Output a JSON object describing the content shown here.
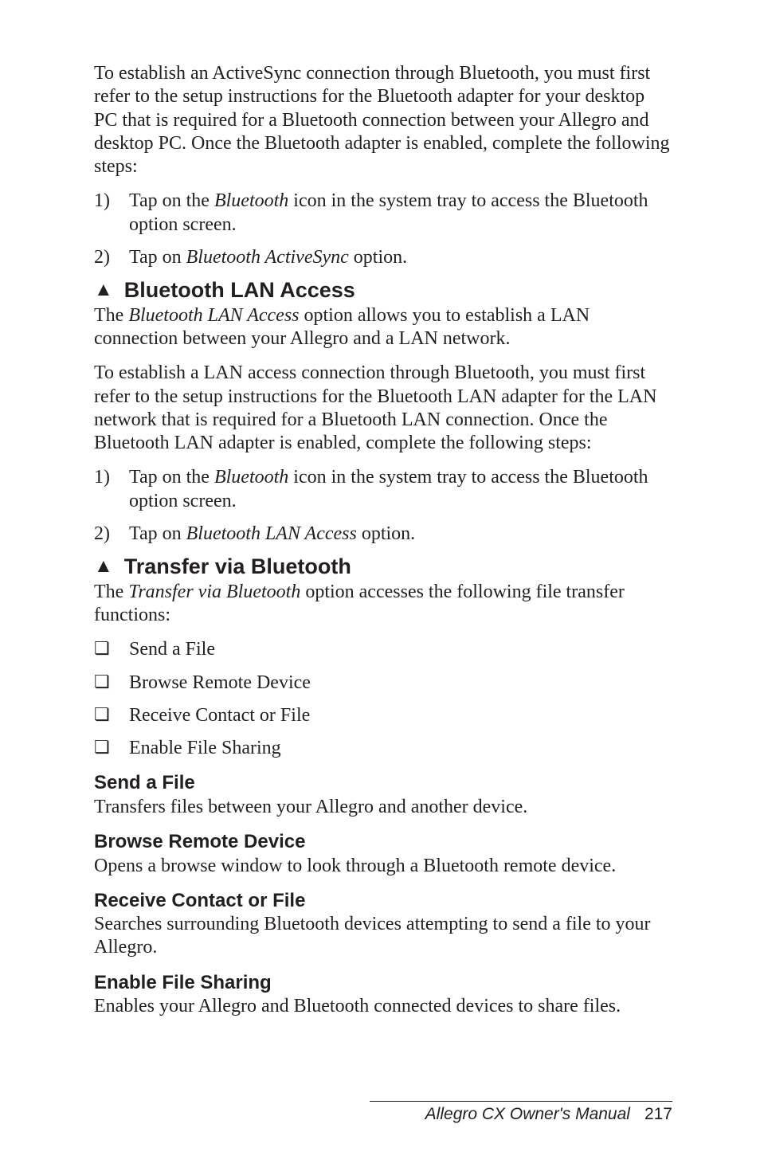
{
  "intro": "To establish an ActiveSync connection through Bluetooth, you must first refer to the setup instructions for the Bluetooth adapter for your desktop PC that is required for a Bluetooth connection between your Allegro and desktop PC. Once the Bluetooth adapter is enabled, complete the following steps:",
  "steps1": {
    "n1": "1)",
    "t1a": "Tap on the ",
    "t1b": "Bluetooth",
    "t1c": " icon in the system tray to access the Bluetooth option screen.",
    "n2": "2)",
    "t2a": "Tap on ",
    "t2b": "Bluetooth ActiveSync",
    "t2c": " option."
  },
  "h_lan": "Bluetooth LAN Access",
  "lan_p1a": "The ",
  "lan_p1b": "Bluetooth LAN Access",
  "lan_p1c": " option allows you to establish a LAN connection between your Allegro and a LAN network.",
  "lan_p2": "To establish a LAN access connection through Bluetooth, you must first refer to the setup instructions for the Bluetooth LAN adapter for the LAN network that is required for a Bluetooth LAN connection. Once the Bluetooth LAN adapter is enabled, complete the following steps:",
  "steps2": {
    "n1": "1)",
    "t1a": "Tap on the ",
    "t1b": "Bluetooth",
    "t1c": " icon in the system tray to access the Bluetooth option screen.",
    "n2": "2)",
    "t2a": "Tap on ",
    "t2b": "Bluetooth LAN Access",
    "t2c": " option."
  },
  "h_xfer": "Transfer via Bluetooth",
  "xfer_p1a": "The ",
  "xfer_p1b": "Transfer via Bluetooth",
  "xfer_p1c": " option accesses the following file transfer functions:",
  "bullets": {
    "b1": "Send a File",
    "b2": "Browse Remote Device",
    "b3": "Receive Contact or File",
    "b4": "Enable File Sharing"
  },
  "sub_send_h": "Send a File",
  "sub_send_p": "Transfers files between your Allegro and another device.",
  "sub_browse_h": "Browse Remote Device",
  "sub_browse_p": "Opens a browse window to look through a Bluetooth remote device.",
  "sub_recv_h": "Receive Contact or File",
  "sub_recv_p": "Searches surrounding Bluetooth devices attempting to send a file to your Allegro.",
  "sub_enable_h": "Enable File Sharing",
  "sub_enable_p": "Enables your Allegro and Bluetooth connected devices to share files.",
  "footer_title": "Allegro CX Owner's Manual",
  "footer_page": "217",
  "glyphs": {
    "triangle": "▲",
    "box": "❏"
  }
}
